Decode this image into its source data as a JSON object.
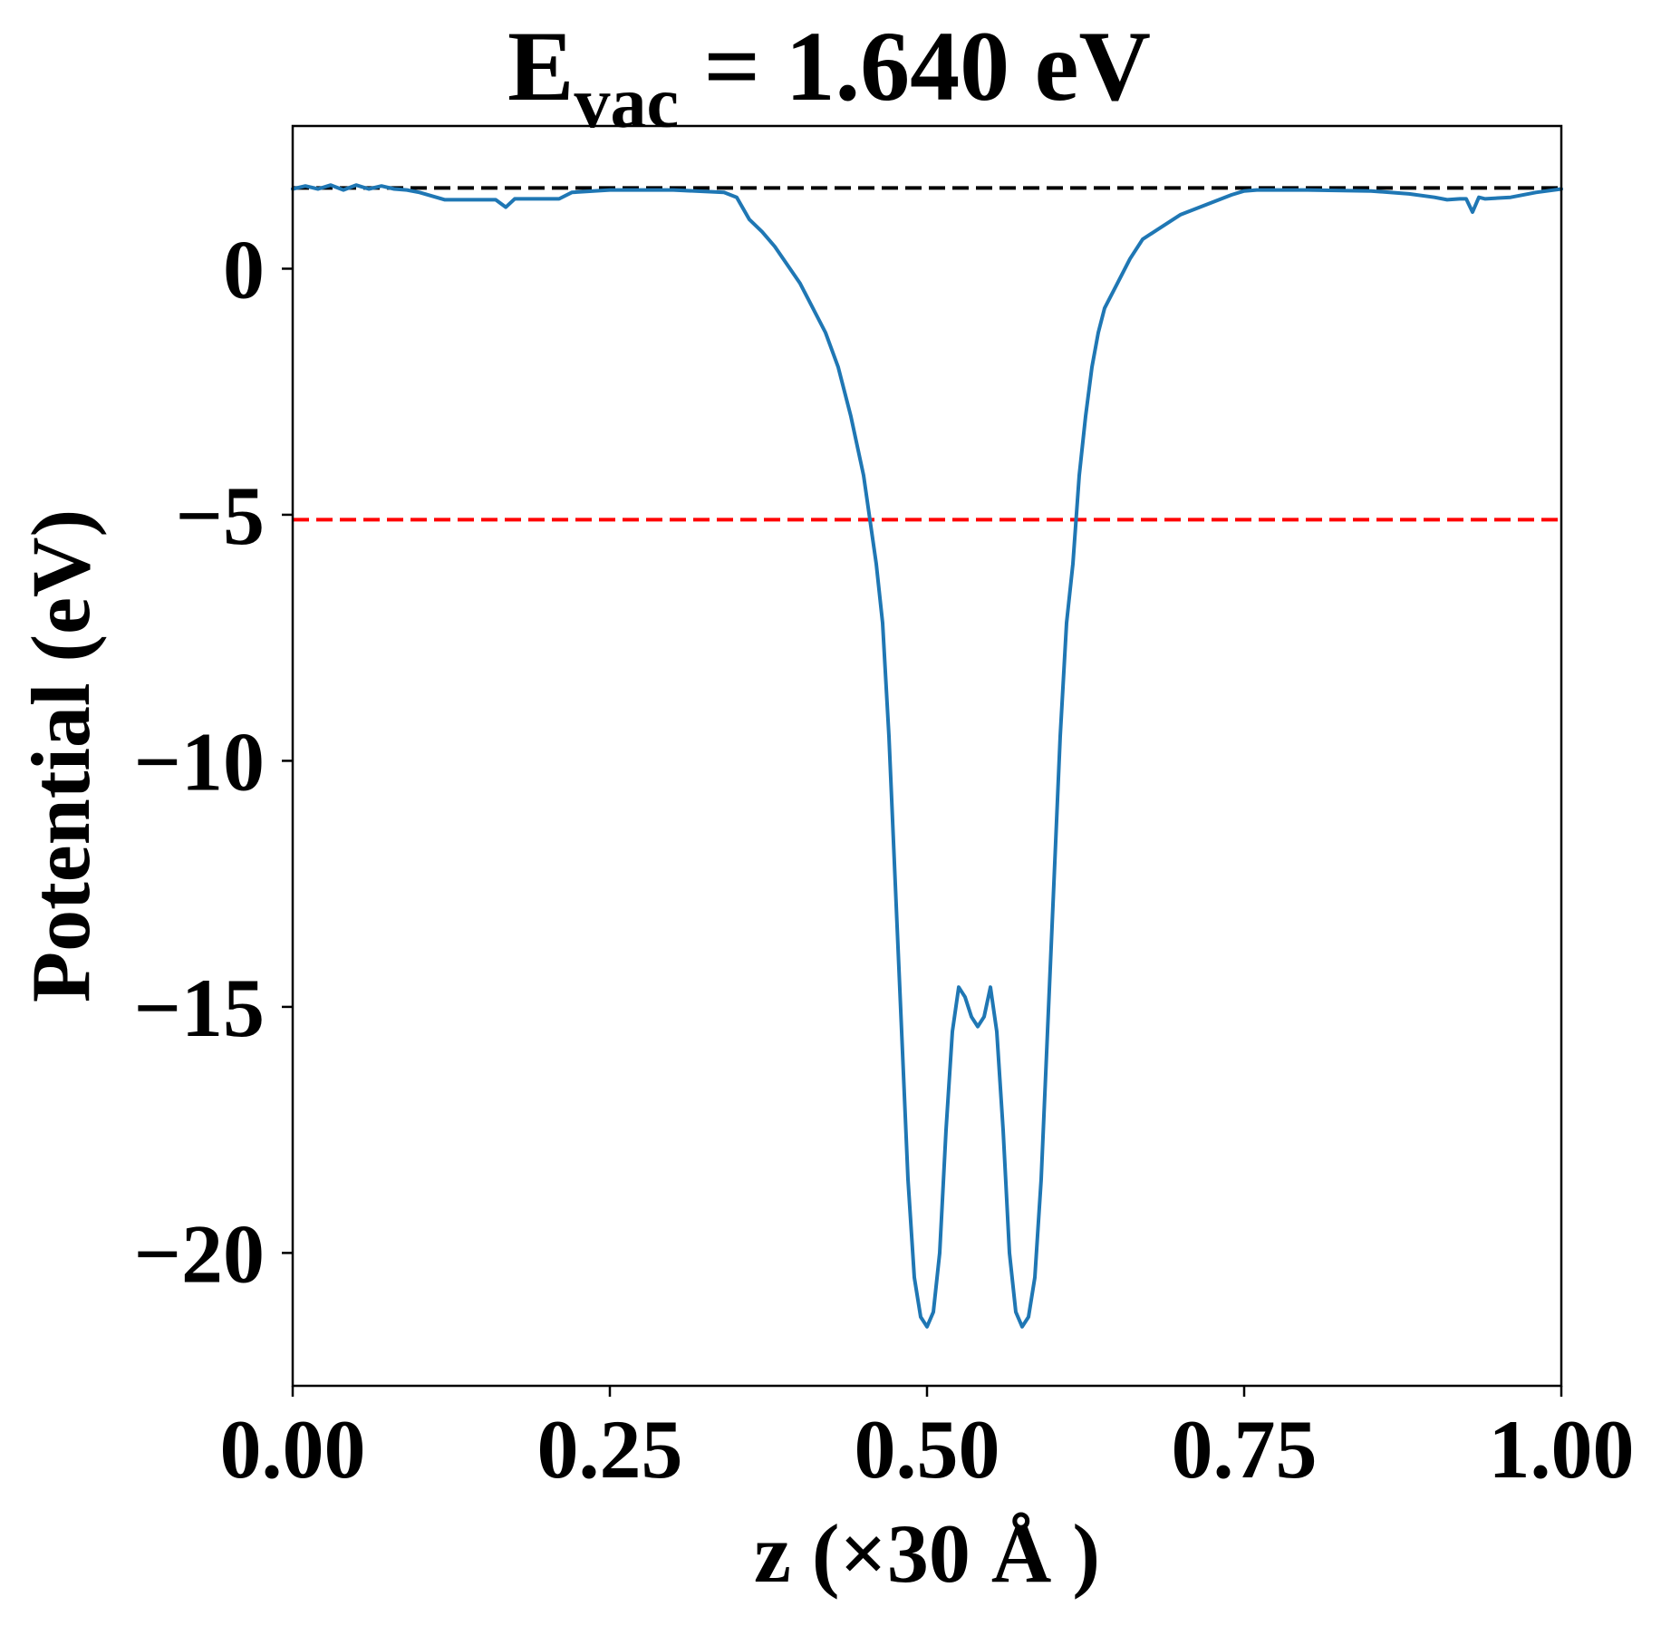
{
  "chart_data": {
    "type": "line",
    "title": {
      "main": "E",
      "subscript": "vac",
      "rest": " = 1.640 eV"
    },
    "xlabel": "z (×30 Å )",
    "ylabel": "Potential (eV)",
    "xlim": [
      0.0,
      1.0
    ],
    "ylim": [
      -22.7,
      2.9
    ],
    "xticks": [
      0.0,
      0.25,
      0.5,
      0.75,
      1.0
    ],
    "xtick_labels": [
      "0.00",
      "0.25",
      "0.50",
      "0.75",
      "1.00"
    ],
    "yticks": [
      0,
      -5,
      -10,
      -15,
      -20
    ],
    "ytick_labels": [
      "0",
      "−5",
      "−10",
      "−15",
      "−20"
    ],
    "grid": false,
    "reference_lines": [
      {
        "name": "vacuum-level",
        "y": 1.64,
        "color": "#000000",
        "style": "dashed"
      },
      {
        "name": "fermi-level",
        "y": -5.1,
        "color": "#ff0000",
        "style": "dashed"
      }
    ],
    "series": [
      {
        "color": "#1f77b4",
        "x": [
          0.0,
          0.01,
          0.02,
          0.03,
          0.04,
          0.05,
          0.06,
          0.07,
          0.08,
          0.09,
          0.1,
          0.12,
          0.14,
          0.16,
          0.168,
          0.175,
          0.19,
          0.21,
          0.22,
          0.25,
          0.3,
          0.34,
          0.35,
          0.36,
          0.37,
          0.38,
          0.4,
          0.42,
          0.43,
          0.44,
          0.45,
          0.46,
          0.465,
          0.47,
          0.475,
          0.48,
          0.485,
          0.49,
          0.495,
          0.5,
          0.505,
          0.51,
          0.515,
          0.52,
          0.525,
          0.53,
          0.535,
          0.54,
          0.545,
          0.55,
          0.555,
          0.56,
          0.565,
          0.57,
          0.575,
          0.58,
          0.585,
          0.59,
          0.595,
          0.6,
          0.605,
          0.61,
          0.615,
          0.62,
          0.625,
          0.63,
          0.635,
          0.64,
          0.65,
          0.66,
          0.67,
          0.7,
          0.72,
          0.74,
          0.75,
          0.76,
          0.8,
          0.85,
          0.88,
          0.9,
          0.91,
          0.92,
          0.925,
          0.93,
          0.935,
          0.94,
          0.96,
          0.98,
          1.0
        ],
        "y": [
          1.62,
          1.68,
          1.62,
          1.7,
          1.6,
          1.7,
          1.62,
          1.68,
          1.62,
          1.6,
          1.55,
          1.4,
          1.4,
          1.4,
          1.25,
          1.42,
          1.42,
          1.42,
          1.55,
          1.6,
          1.6,
          1.55,
          1.45,
          1.0,
          0.75,
          0.45,
          -0.3,
          -1.3,
          -2.0,
          -3.0,
          -4.2,
          -6.0,
          -7.2,
          -9.5,
          -12.5,
          -15.5,
          -18.5,
          -20.5,
          -21.3,
          -21.5,
          -21.2,
          -20.0,
          -17.5,
          -15.5,
          -14.6,
          -14.8,
          -15.2,
          -15.4,
          -15.2,
          -14.6,
          -15.5,
          -17.5,
          -20.0,
          -21.2,
          -21.5,
          -21.3,
          -20.5,
          -18.5,
          -15.5,
          -12.5,
          -9.5,
          -7.2,
          -6.0,
          -4.2,
          -3.0,
          -2.0,
          -1.3,
          -0.8,
          -0.3,
          0.2,
          0.6,
          1.1,
          1.3,
          1.5,
          1.58,
          1.6,
          1.6,
          1.58,
          1.52,
          1.45,
          1.4,
          1.42,
          1.42,
          1.15,
          1.45,
          1.42,
          1.45,
          1.55,
          1.62
        ]
      }
    ]
  }
}
